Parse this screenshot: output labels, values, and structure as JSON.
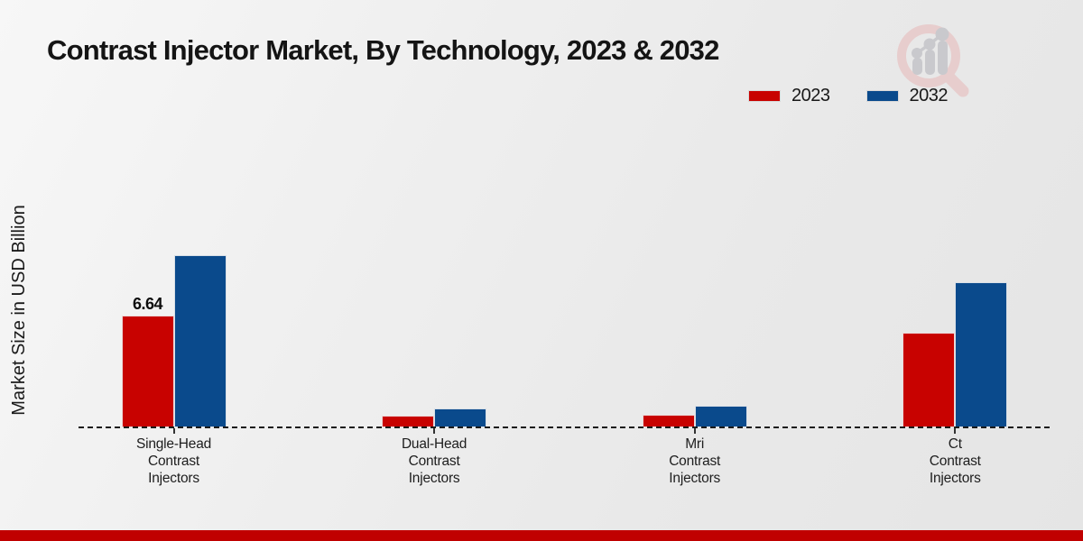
{
  "title": "Contrast Injector Market, By Technology, 2023 & 2032",
  "ylabel": "Market Size in USD Billion",
  "legend": {
    "position": "top-right",
    "items": [
      {
        "label": "2023",
        "color": "#c80200"
      },
      {
        "label": "2032",
        "color": "#0a4a8c"
      }
    ]
  },
  "logo": {
    "name": "market-research-magnifier-logo"
  },
  "footer": {
    "color": "#c00000"
  },
  "chart_data": {
    "type": "bar",
    "title": "Contrast Injector Market, By Technology, 2023 & 2032",
    "xlabel": "",
    "ylabel": "Market Size in USD Billion",
    "categories": [
      "Single-Head\nContrast\nInjectors",
      "Dual-Head\nContrast\nInjectors",
      "Mri\nContrast\nInjectors",
      "Ct\nContrast\nInjectors"
    ],
    "series": [
      {
        "name": "2023",
        "color": "#c80200",
        "values": [
          6.64,
          0.7,
          0.75,
          5.6
        ],
        "value_labels": [
          "6.64",
          "",
          "",
          ""
        ]
      },
      {
        "name": "2032",
        "color": "#0a4a8c",
        "values": [
          10.2,
          1.1,
          1.3,
          8.6
        ],
        "value_labels": [
          "",
          "",
          "",
          ""
        ]
      }
    ],
    "ylim": [
      0,
      10.6
    ],
    "grid": false,
    "baseline_style": "dashed",
    "legend_position": "top-right",
    "y_axis_ticks_visible": false
  }
}
